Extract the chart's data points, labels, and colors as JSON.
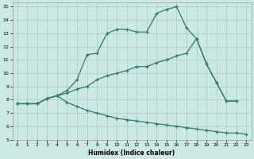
{
  "xlabel": "Humidex (Indice chaleur)",
  "background_color": "#cce8e4",
  "grid_color": "#aacfcc",
  "line_color": "#2d7a6e",
  "xlim": [
    -0.5,
    23.5
  ],
  "ylim": [
    5,
    15.3
  ],
  "xticks": [
    0,
    1,
    2,
    3,
    4,
    5,
    6,
    7,
    8,
    9,
    10,
    11,
    12,
    13,
    14,
    15,
    16,
    17,
    18,
    19,
    20,
    21,
    22,
    23
  ],
  "yticks": [
    5,
    6,
    7,
    8,
    9,
    10,
    11,
    12,
    13,
    14,
    15
  ],
  "line1_x": [
    0,
    1,
    2,
    3,
    4,
    5,
    6,
    7,
    8,
    9,
    10,
    11,
    12,
    13,
    14,
    15,
    16,
    17,
    18,
    19,
    20,
    21,
    22
  ],
  "line1_y": [
    7.7,
    7.7,
    7.7,
    8.1,
    8.3,
    8.7,
    9.5,
    11.4,
    11.5,
    13.0,
    13.3,
    13.3,
    13.1,
    13.1,
    14.5,
    14.8,
    15.0,
    13.4,
    12.6,
    10.7,
    9.3,
    7.9,
    7.9
  ],
  "line2_x": [
    0,
    1,
    2,
    3,
    4,
    5,
    6,
    7,
    8,
    9,
    10,
    11,
    12,
    13,
    14,
    15,
    16,
    17,
    18,
    19,
    20,
    21,
    22
  ],
  "line2_y": [
    7.7,
    7.7,
    7.7,
    8.1,
    8.3,
    8.5,
    8.8,
    9.0,
    9.5,
    9.8,
    10.0,
    10.2,
    10.5,
    10.5,
    10.8,
    11.0,
    11.3,
    11.5,
    12.6,
    10.7,
    9.3,
    7.9,
    7.9
  ],
  "line3_x": [
    0,
    1,
    2,
    3,
    4,
    5,
    6,
    7,
    8,
    9,
    10,
    11,
    12,
    13,
    14,
    15,
    16,
    17,
    18,
    19,
    20,
    21,
    22,
    23
  ],
  "line3_y": [
    7.7,
    7.7,
    7.7,
    8.1,
    8.3,
    7.8,
    7.5,
    7.2,
    7.0,
    6.8,
    6.6,
    6.5,
    6.4,
    6.3,
    6.2,
    6.1,
    6.0,
    5.9,
    5.8,
    5.7,
    5.6,
    5.5,
    5.5,
    5.4
  ]
}
